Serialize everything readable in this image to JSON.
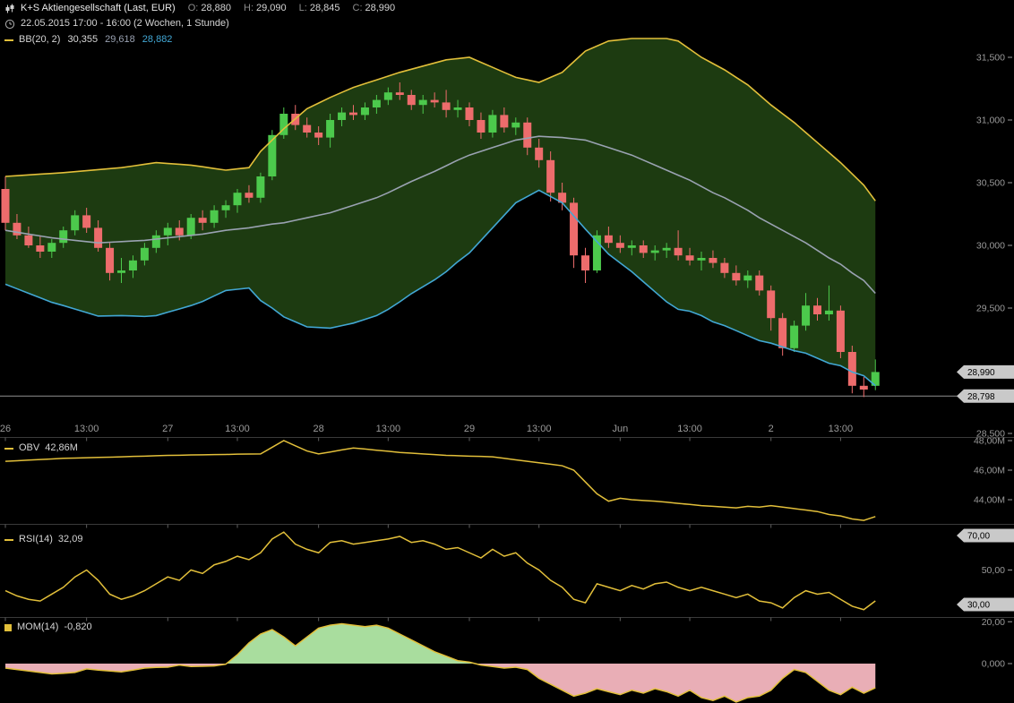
{
  "header": {
    "title": "K+S Aktiengesellschaft (Last, EUR)",
    "ohlc": [
      {
        "label": "O:",
        "value": "28,880"
      },
      {
        "label": "H:",
        "value": "29,090"
      },
      {
        "label": "L:",
        "value": "28,845"
      },
      {
        "label": "C:",
        "value": "28,990"
      }
    ],
    "period": "22.05.2015 17:00 - 16:00 (2 Wochen, 1 Stunde)"
  },
  "bb_legend": {
    "name": "BB(20, 2)",
    "values": [
      {
        "text": "30,355",
        "color": "#d9d9d9"
      },
      {
        "text": "29,618",
        "color": "#9aa2b2"
      },
      {
        "text": "28,882",
        "color": "#42a7d4"
      }
    ]
  },
  "obv_legend": {
    "name": "OBV",
    "value": "42,86M"
  },
  "rsi_legend": {
    "name": "RSI(14)",
    "value": "32,09"
  },
  "mom_legend": {
    "name": "MOM(14)",
    "value": "-0,820"
  },
  "colors": {
    "up_candle": "#4cc94c",
    "down_candle": "#ed6c6c",
    "bb_upper": "#e2bf3a",
    "bb_middle": "#9aa2b2",
    "bb_lower": "#42a7d4",
    "band_fill": "#1d3b11",
    "indicator_line": "#e2bf3a",
    "mom_positive_fill": "#a9dd9e",
    "mom_negative_fill": "#e9aeb6",
    "axis_text": "#9a9a9a",
    "separator": "#3a3a3a",
    "tick": "#5f5f5f",
    "tag_bg": "#c9c9c9",
    "tag_text": "#000000",
    "reference_line": "#8f8f8f"
  },
  "chart_data": [
    {
      "id": "price",
      "type": "candlestick",
      "instrument": "K+S Aktiengesellschaft",
      "currency": "EUR",
      "range": "2 Wochen",
      "interval": "1 Stunde",
      "ohlc_last": {
        "open": 28.88,
        "high": 29.09,
        "low": 28.845,
        "close": 28.99
      },
      "y_ticks": [
        {
          "value": 31.5,
          "label": "31,500"
        },
        {
          "value": 31.0,
          "label": "31,000"
        },
        {
          "value": 30.5,
          "label": "30,500"
        },
        {
          "value": 30.0,
          "label": "30,000"
        },
        {
          "value": 29.5,
          "label": "29,500"
        },
        {
          "value": 28.5,
          "label": "28,500"
        }
      ],
      "price_tags": [
        {
          "value": 28.99,
          "label": "28,990",
          "hline": false
        },
        {
          "value": 28.798,
          "label": "28,798",
          "hline": true
        }
      ],
      "x_labels": [
        {
          "index": 0,
          "label": "26"
        },
        {
          "index": 7,
          "label": "13:00"
        },
        {
          "index": 14,
          "label": "27"
        },
        {
          "index": 20,
          "label": "13:00"
        },
        {
          "index": 27,
          "label": "28"
        },
        {
          "index": 33,
          "label": "13:00"
        },
        {
          "index": 40,
          "label": "29"
        },
        {
          "index": 46,
          "label": "13:00"
        },
        {
          "index": 53,
          "label": "Jun"
        },
        {
          "index": 59,
          "label": "13:00"
        },
        {
          "index": 66,
          "label": "2"
        },
        {
          "index": 72,
          "label": "13:00"
        }
      ],
      "candles": [
        [
          30.45,
          30.55,
          30.12,
          30.18
        ],
        [
          30.18,
          30.25,
          30.05,
          30.08
        ],
        [
          30.08,
          30.15,
          29.98,
          30.0
        ],
        [
          30.0,
          30.08,
          29.9,
          29.95
        ],
        [
          29.95,
          30.05,
          29.9,
          30.02
        ],
        [
          30.02,
          30.15,
          29.98,
          30.12
        ],
        [
          30.12,
          30.28,
          30.08,
          30.24
        ],
        [
          30.24,
          30.3,
          30.1,
          30.14
        ],
        [
          30.14,
          30.2,
          29.95,
          29.98
        ],
        [
          29.98,
          30.02,
          29.72,
          29.78
        ],
        [
          29.78,
          29.9,
          29.7,
          29.8
        ],
        [
          29.8,
          29.92,
          29.74,
          29.88
        ],
        [
          29.88,
          30.02,
          29.84,
          29.98
        ],
        [
          29.98,
          30.12,
          29.94,
          30.08
        ],
        [
          30.08,
          30.18,
          30.0,
          30.14
        ],
        [
          30.14,
          30.2,
          30.04,
          30.08
        ],
        [
          30.08,
          30.25,
          30.05,
          30.22
        ],
        [
          30.22,
          30.28,
          30.12,
          30.18
        ],
        [
          30.18,
          30.32,
          30.14,
          30.28
        ],
        [
          30.28,
          30.36,
          30.22,
          30.32
        ],
        [
          30.32,
          30.45,
          30.26,
          30.42
        ],
        [
          30.42,
          30.48,
          30.34,
          30.38
        ],
        [
          30.38,
          30.58,
          30.34,
          30.55
        ],
        [
          30.55,
          30.92,
          30.52,
          30.88
        ],
        [
          30.88,
          31.1,
          30.85,
          31.05
        ],
        [
          31.05,
          31.12,
          30.92,
          30.96
        ],
        [
          30.96,
          31.02,
          30.86,
          30.9
        ],
        [
          30.9,
          30.95,
          30.8,
          30.86
        ],
        [
          30.86,
          31.05,
          30.78,
          31.0
        ],
        [
          31.0,
          31.1,
          30.95,
          31.06
        ],
        [
          31.06,
          31.12,
          31.0,
          31.04
        ],
        [
          31.04,
          31.14,
          31.0,
          31.1
        ],
        [
          31.1,
          31.2,
          31.05,
          31.16
        ],
        [
          31.16,
          31.26,
          31.12,
          31.22
        ],
        [
          31.22,
          31.3,
          31.16,
          31.2
        ],
        [
          31.2,
          31.24,
          31.08,
          31.12
        ],
        [
          31.12,
          31.2,
          31.05,
          31.16
        ],
        [
          31.16,
          31.22,
          31.1,
          31.14
        ],
        [
          31.14,
          31.24,
          31.02,
          31.08
        ],
        [
          31.08,
          31.16,
          31.02,
          31.1
        ],
        [
          31.1,
          31.14,
          30.95,
          31.0
        ],
        [
          31.0,
          31.06,
          30.85,
          30.9
        ],
        [
          30.9,
          31.08,
          30.86,
          31.04
        ],
        [
          31.04,
          31.1,
          30.9,
          30.94
        ],
        [
          30.94,
          31.02,
          30.88,
          30.98
        ],
        [
          30.98,
          31.02,
          30.72,
          30.78
        ],
        [
          30.78,
          30.85,
          30.62,
          30.68
        ],
        [
          30.68,
          30.75,
          30.35,
          30.42
        ],
        [
          30.42,
          30.5,
          30.28,
          30.34
        ],
        [
          30.34,
          30.38,
          29.82,
          29.92
        ],
        [
          29.92,
          29.98,
          29.7,
          29.8
        ],
        [
          29.8,
          30.12,
          29.78,
          30.08
        ],
        [
          30.08,
          30.15,
          29.98,
          30.02
        ],
        [
          30.02,
          30.08,
          29.94,
          29.98
        ],
        [
          29.98,
          30.04,
          29.92,
          30.0
        ],
        [
          30.0,
          30.04,
          29.9,
          29.94
        ],
        [
          29.94,
          30.0,
          29.88,
          29.96
        ],
        [
          29.96,
          30.02,
          29.9,
          29.98
        ],
        [
          29.98,
          30.12,
          29.88,
          29.92
        ],
        [
          29.92,
          29.98,
          29.84,
          29.88
        ],
        [
          29.88,
          29.95,
          29.8,
          29.9
        ],
        [
          29.9,
          29.96,
          29.82,
          29.86
        ],
        [
          29.86,
          29.9,
          29.74,
          29.78
        ],
        [
          29.78,
          29.84,
          29.68,
          29.72
        ],
        [
          29.72,
          29.8,
          29.66,
          29.76
        ],
        [
          29.76,
          29.8,
          29.6,
          29.64
        ],
        [
          29.64,
          29.68,
          29.32,
          29.42
        ],
        [
          29.42,
          29.46,
          29.12,
          29.18
        ],
        [
          29.18,
          29.4,
          29.15,
          29.36
        ],
        [
          29.36,
          29.62,
          29.32,
          29.52
        ],
        [
          29.52,
          29.58,
          29.4,
          29.45
        ],
        [
          29.45,
          29.68,
          29.4,
          29.48
        ],
        [
          29.48,
          29.52,
          29.1,
          29.15
        ],
        [
          29.15,
          29.2,
          28.82,
          28.88
        ],
        [
          28.88,
          28.95,
          28.79,
          28.85
        ],
        [
          28.88,
          29.09,
          28.845,
          28.99
        ]
      ],
      "bollinger": {
        "period": 20,
        "stddev": 2,
        "last": {
          "upper": 30.355,
          "middle": 29.618,
          "lower": 28.882
        },
        "lower_formula": "2*middle-upper",
        "upper": [
          30.55,
          30.556,
          30.562,
          30.568,
          30.574,
          30.58,
          30.588,
          30.596,
          30.604,
          30.612,
          30.62,
          30.633,
          30.647,
          30.66,
          30.653,
          30.647,
          30.64,
          30.627,
          30.613,
          30.6,
          30.61,
          30.62,
          30.75,
          30.84,
          30.93,
          31.01,
          31.09,
          31.135,
          31.18,
          31.22,
          31.26,
          31.29,
          31.32,
          31.35,
          31.38,
          31.405,
          31.43,
          31.455,
          31.48,
          31.49,
          31.5,
          31.46,
          31.42,
          31.38,
          31.34,
          31.32,
          31.3,
          31.34,
          31.38,
          31.465,
          31.55,
          31.59,
          31.63,
          31.64,
          31.65,
          31.65,
          31.65,
          31.65,
          31.63,
          31.565,
          31.5,
          31.45,
          31.4,
          31.34,
          31.28,
          31.2,
          31.12,
          31.05,
          30.98,
          30.9,
          30.82,
          30.74,
          30.66,
          30.57,
          30.48,
          30.355
        ],
        "middle": [
          30.12,
          30.105,
          30.09,
          30.075,
          30.06,
          30.05,
          30.04,
          30.03,
          30.02,
          30.025,
          30.03,
          30.035,
          30.04,
          30.05,
          30.06,
          30.07,
          30.08,
          30.09,
          30.105,
          30.12,
          30.13,
          30.14,
          30.155,
          30.17,
          30.18,
          30.2,
          30.22,
          30.24,
          30.26,
          30.29,
          30.32,
          30.35,
          30.38,
          30.42,
          30.465,
          30.51,
          30.55,
          30.59,
          30.635,
          30.68,
          30.72,
          30.75,
          30.78,
          30.81,
          30.84,
          30.855,
          30.87,
          30.865,
          30.86,
          30.85,
          30.84,
          30.81,
          30.78,
          30.75,
          30.72,
          30.68,
          30.64,
          30.6,
          30.56,
          30.52,
          30.47,
          30.42,
          30.38,
          30.33,
          30.28,
          30.22,
          30.17,
          30.12,
          30.07,
          30.02,
          29.96,
          29.9,
          29.85,
          29.78,
          29.72,
          29.618
        ]
      }
    },
    {
      "id": "obv",
      "type": "line",
      "name": "OBV",
      "last_label": "42,86M",
      "y_ticks": [
        {
          "value": 48,
          "label": "48,00M"
        },
        {
          "value": 46,
          "label": "46,00M"
        },
        {
          "value": 44,
          "label": "44,00M"
        }
      ],
      "values_millions": [
        46.6,
        46.64,
        46.68,
        46.72,
        46.76,
        46.8,
        46.82,
        46.84,
        46.86,
        46.88,
        46.9,
        46.93,
        46.95,
        46.98,
        47.0,
        47.01,
        47.03,
        47.04,
        47.05,
        47.06,
        47.08,
        47.09,
        47.1,
        47.55,
        48.0,
        47.65,
        47.3,
        47.1,
        47.23,
        47.37,
        47.5,
        47.43,
        47.35,
        47.28,
        47.2,
        47.15,
        47.1,
        47.05,
        47.0,
        46.98,
        46.95,
        46.93,
        46.9,
        46.8,
        46.7,
        46.6,
        46.5,
        46.4,
        46.3,
        46.0,
        45.2,
        44.4,
        43.9,
        44.1,
        44.0,
        43.95,
        43.9,
        43.83,
        43.75,
        43.68,
        43.6,
        43.55,
        43.5,
        43.45,
        43.55,
        43.5,
        43.6,
        43.5,
        43.4,
        43.3,
        43.2,
        43.0,
        42.9,
        42.7,
        42.6,
        42.86
      ]
    },
    {
      "id": "rsi",
      "type": "line",
      "name": "RSI",
      "period": 14,
      "last": 32.09,
      "y_ticks": [
        {
          "value": 70,
          "label": "70,00",
          "tag": true
        },
        {
          "value": 50,
          "label": "50,00",
          "tag": false
        },
        {
          "value": 30,
          "label": "30,00",
          "tag": true
        },
        {
          "value": 20,
          "label": "20,00",
          "tag": false
        }
      ],
      "values": [
        38,
        35,
        33,
        32,
        36,
        40,
        46,
        50,
        44,
        36,
        33,
        35,
        38,
        42,
        46,
        44,
        50,
        48,
        53,
        55,
        58,
        56,
        60,
        68,
        72,
        65,
        62,
        60,
        66,
        67,
        65,
        66,
        67,
        68,
        69.5,
        66,
        67,
        65,
        62,
        63,
        60,
        57,
        62,
        58,
        60,
        54,
        50,
        44,
        40,
        33,
        31,
        42,
        40,
        38,
        41,
        39,
        42,
        43,
        40,
        38,
        40,
        38,
        36,
        34,
        36,
        32,
        31,
        28,
        34,
        38,
        36,
        37,
        33,
        29,
        27,
        32.09
      ]
    },
    {
      "id": "mom",
      "type": "area",
      "name": "MOM",
      "period": 14,
      "last": -0.82,
      "y_ticks": [
        {
          "value": 0,
          "label": "0,000"
        }
      ],
      "values": [
        -0.15,
        -0.2,
        -0.25,
        -0.3,
        -0.35,
        -0.33,
        -0.3,
        -0.18,
        -0.22,
        -0.25,
        -0.28,
        -0.22,
        -0.15,
        -0.13,
        -0.12,
        -0.05,
        -0.1,
        -0.09,
        -0.08,
        -0.02,
        0.3,
        0.7,
        1.0,
        1.15,
        0.9,
        0.6,
        0.9,
        1.2,
        1.3,
        1.35,
        1.3,
        1.25,
        1.3,
        1.2,
        1.0,
        0.8,
        0.6,
        0.4,
        0.25,
        0.1,
        0.05,
        -0.05,
        -0.1,
        -0.15,
        -0.12,
        -0.2,
        -0.5,
        -0.7,
        -0.9,
        -1.1,
        -1.0,
        -0.85,
        -0.95,
        -1.05,
        -0.9,
        -1.0,
        -0.85,
        -0.95,
        -1.1,
        -0.9,
        -1.15,
        -1.25,
        -1.1,
        -1.3,
        -1.15,
        -1.1,
        -0.9,
        -0.5,
        -0.2,
        -0.3,
        -0.6,
        -0.9,
        -1.05,
        -0.8,
        -1.0,
        -0.82
      ]
    }
  ]
}
